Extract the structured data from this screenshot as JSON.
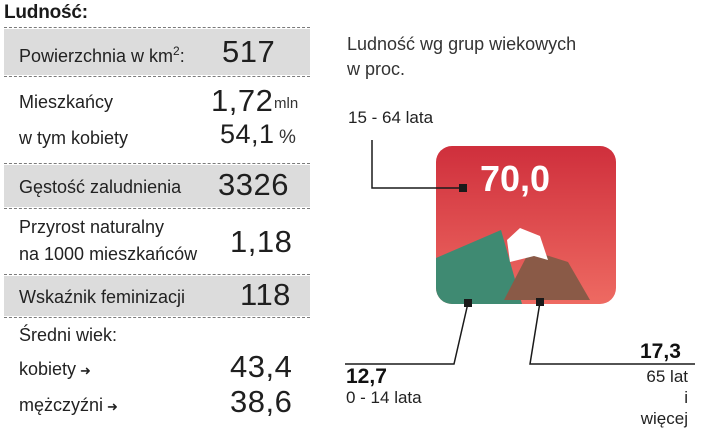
{
  "stats": {
    "heading": "Ludność:",
    "area_label": "Powierzchnia w km",
    "area_sup": "2",
    "area_colon": ":",
    "area_value": "517",
    "population_label": "Mieszkańcy",
    "population_value": "1,72",
    "population_unit": "mln",
    "women_label": "w tym kobiety",
    "women_value": "54,1",
    "women_unit": "%",
    "density_label": "Gęstość zaludnienia",
    "density_value": "3326",
    "growth_label_line1": "Przyrost naturalny",
    "growth_label_line2": "na 1000 mieszkańców",
    "growth_value": "1,18",
    "feminization_label": "Wskaźnik feminizacji",
    "feminization_value": "118",
    "age_label": "Średni wiek:",
    "age_women_label": "kobiety",
    "age_women_value": "43,4",
    "age_men_label": "mężczyźni",
    "age_men_value": "38,6",
    "arrow_glyph": "➜"
  },
  "chart_data": {
    "type": "pie",
    "title_line1": "Ludność wg grup wiekowych",
    "title_line2": "w proc.",
    "categories": [
      "15 - 64 lata",
      "0 - 14 lata",
      "65 lat i więcej"
    ],
    "values": [
      70.0,
      12.7,
      17.3
    ],
    "value_labels": [
      "70,0",
      "12,7",
      "17,3"
    ],
    "label_65_line1": "65 lat",
    "label_65_line2": "i więcej",
    "colors": [
      "#e23d46",
      "#3f8a72",
      "#8a5a47"
    ]
  }
}
